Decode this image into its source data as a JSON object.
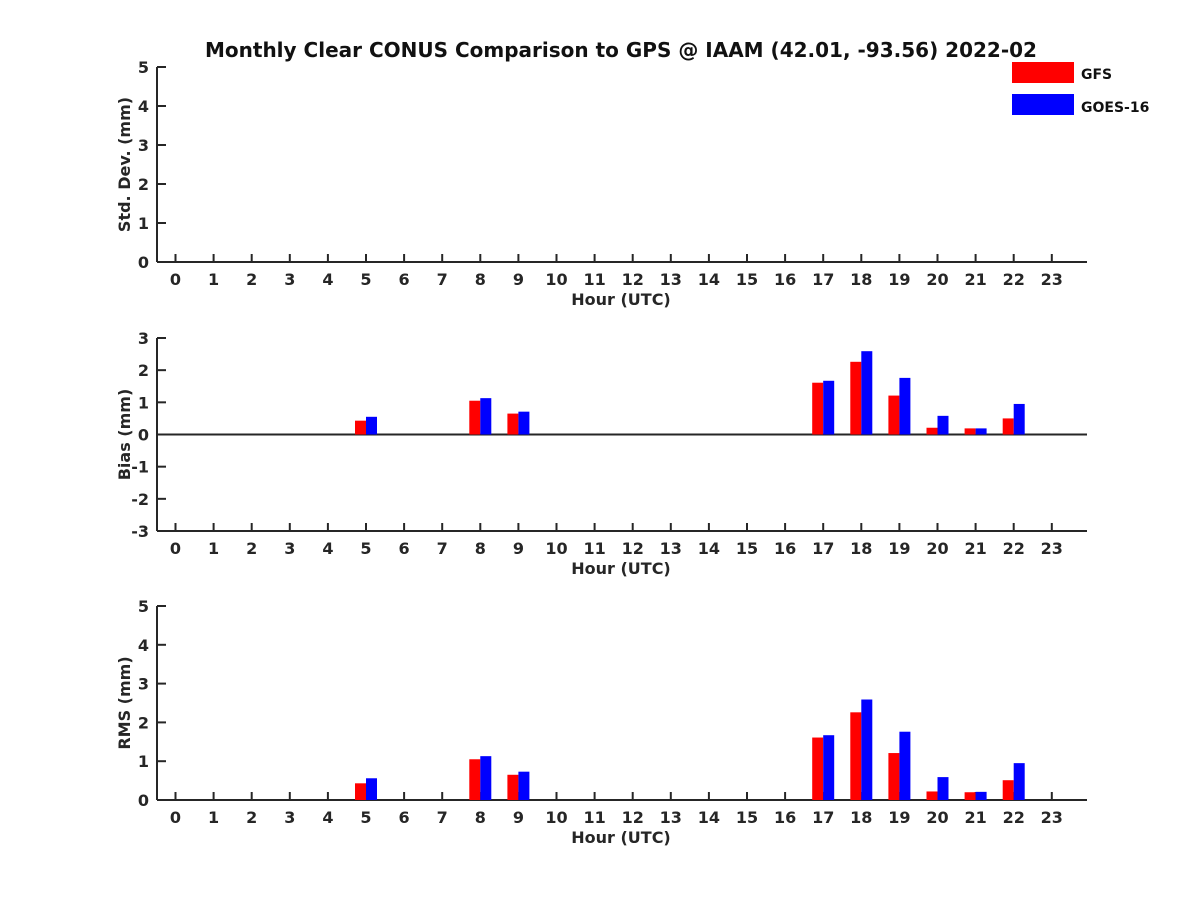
{
  "chart_data": {
    "title": "Monthly Clear CONUS Comparison to GPS @ IAAM (42.01, -93.56) 2022-02",
    "type": "bar",
    "legend": {
      "placement": "top-right",
      "entries": [
        {
          "name": "GFS",
          "color": "#ff0000"
        },
        {
          "name": "GOES-16",
          "color": "#0000ff"
        }
      ]
    },
    "panels": [
      {
        "id": "std",
        "ylabel": "Std. Dev. (mm)",
        "xlabel": "Hour (UTC)",
        "ylim": [
          0,
          5
        ],
        "yticks": [
          0,
          1,
          2,
          3,
          4,
          5
        ],
        "xticks": [
          0,
          1,
          2,
          3,
          4,
          5,
          6,
          7,
          8,
          9,
          10,
          11,
          12,
          13,
          14,
          15,
          16,
          17,
          18,
          19,
          20,
          21,
          22,
          23
        ],
        "series": [
          {
            "name": "GFS",
            "values": []
          },
          {
            "name": "GOES-16",
            "values": []
          }
        ]
      },
      {
        "id": "bias",
        "ylabel": "Bias (mm)",
        "xlabel": "Hour (UTC)",
        "ylim": [
          -3,
          3
        ],
        "yticks": [
          -3,
          -2,
          -1,
          0,
          1,
          2,
          3
        ],
        "xticks": [
          0,
          1,
          2,
          3,
          4,
          5,
          6,
          7,
          8,
          9,
          10,
          11,
          12,
          13,
          14,
          15,
          16,
          17,
          18,
          19,
          20,
          21,
          22,
          23
        ],
        "series": [
          {
            "name": "GFS",
            "values": [
              [
                5,
                0.43
              ],
              [
                8,
                1.05
              ],
              [
                9,
                0.65
              ],
              [
                17,
                1.61
              ],
              [
                18,
                2.26
              ],
              [
                19,
                1.21
              ],
              [
                20,
                0.21
              ],
              [
                21,
                0.19
              ],
              [
                22,
                0.5
              ]
            ]
          },
          {
            "name": "GOES-16",
            "values": [
              [
                5,
                0.55
              ],
              [
                8,
                1.13
              ],
              [
                9,
                0.71
              ],
              [
                17,
                1.67
              ],
              [
                18,
                2.59
              ],
              [
                19,
                1.76
              ],
              [
                20,
                0.58
              ],
              [
                21,
                0.19
              ],
              [
                22,
                0.95
              ]
            ]
          }
        ]
      },
      {
        "id": "rms",
        "ylabel": "RMS (mm)",
        "xlabel": "Hour (UTC)",
        "ylim": [
          0,
          5
        ],
        "yticks": [
          0,
          1,
          2,
          3,
          4,
          5
        ],
        "xticks": [
          0,
          1,
          2,
          3,
          4,
          5,
          6,
          7,
          8,
          9,
          10,
          11,
          12,
          13,
          14,
          15,
          16,
          17,
          18,
          19,
          20,
          21,
          22,
          23
        ],
        "series": [
          {
            "name": "GFS",
            "values": [
              [
                5,
                0.43
              ],
              [
                8,
                1.05
              ],
              [
                9,
                0.65
              ],
              [
                17,
                1.61
              ],
              [
                18,
                2.26
              ],
              [
                19,
                1.21
              ],
              [
                20,
                0.22
              ],
              [
                21,
                0.2
              ],
              [
                22,
                0.51
              ]
            ]
          },
          {
            "name": "GOES-16",
            "values": [
              [
                5,
                0.56
              ],
              [
                8,
                1.13
              ],
              [
                9,
                0.73
              ],
              [
                17,
                1.67
              ],
              [
                18,
                2.59
              ],
              [
                19,
                1.76
              ],
              [
                20,
                0.59
              ],
              [
                21,
                0.21
              ],
              [
                22,
                0.95
              ]
            ]
          }
        ]
      }
    ]
  }
}
